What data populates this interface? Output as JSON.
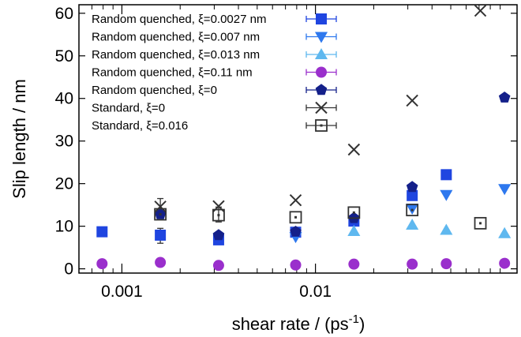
{
  "chart_data": {
    "type": "scatter",
    "xlabel": "shear rate / (ps",
    "xlabel_sup": "-1",
    "xlabel_end": ")",
    "ylabel": "Slip length / nm",
    "x_scale": "log",
    "xlim": [
      0.0006,
      0.11
    ],
    "ylim": [
      -1,
      62
    ],
    "x_ticks": [
      {
        "value": 0.001,
        "label": "0.001"
      },
      {
        "value": 0.01,
        "label": "0.01"
      }
    ],
    "y_ticks": [
      {
        "value": 0,
        "label": "0"
      },
      {
        "value": 10,
        "label": "10"
      },
      {
        "value": 20,
        "label": "20"
      },
      {
        "value": 30,
        "label": "30"
      },
      {
        "value": 40,
        "label": "40"
      },
      {
        "value": 50,
        "label": "50"
      },
      {
        "value": 60,
        "label": "60"
      }
    ],
    "grid": false,
    "legend_position": "top-left",
    "series": [
      {
        "name": "Random quenched, ξ=0.0027 nm",
        "marker": "square-filled",
        "color": "#1f45e0",
        "points": [
          [
            0.00079,
            8.7
          ],
          [
            0.00158,
            7.9
          ],
          [
            0.00316,
            6.8
          ],
          [
            0.0079,
            8.6
          ],
          [
            0.0158,
            11.2
          ],
          [
            0.0316,
            17.2
          ],
          [
            0.0474,
            22.1
          ]
        ]
      },
      {
        "name": "Random quenched, ξ=0.007 nm",
        "marker": "triangle-down-filled",
        "color": "#2e78ee",
        "points": [
          [
            0.0079,
            7.5
          ],
          [
            0.0316,
            14.2
          ],
          [
            0.0474,
            17.4
          ],
          [
            0.0948,
            18.8
          ]
        ]
      },
      {
        "name": "Random quenched, ξ=0.013 nm",
        "marker": "triangle-up-filled",
        "color": "#5fb8ef",
        "points": [
          [
            0.0158,
            8.8
          ],
          [
            0.0316,
            10.3
          ],
          [
            0.0474,
            9.1
          ],
          [
            0.0948,
            8.3
          ]
        ]
      },
      {
        "name": "Random quenched, ξ=0.11 nm",
        "marker": "circle-filled",
        "color": "#9a2fcc",
        "points": [
          [
            0.00079,
            1.2
          ],
          [
            0.00158,
            1.5
          ],
          [
            0.00316,
            0.8
          ],
          [
            0.0079,
            0.9
          ],
          [
            0.0158,
            1.1
          ],
          [
            0.0316,
            1.1
          ],
          [
            0.0474,
            1.2
          ],
          [
            0.0948,
            1.3
          ]
        ]
      },
      {
        "name": "Random quenched, ξ=0",
        "marker": "pentagon-filled",
        "color": "#14208a",
        "points": [
          [
            0.00158,
            12.8
          ],
          [
            0.00316,
            7.9
          ],
          [
            0.0079,
            8.7
          ],
          [
            0.0158,
            11.9
          ],
          [
            0.0316,
            19.2
          ],
          [
            0.0948,
            40.2
          ]
        ]
      },
      {
        "name": "Standard, ξ=0",
        "marker": "cross",
        "color": "#333333",
        "points": [
          [
            0.00158,
            14.6
          ],
          [
            0.00316,
            14.7
          ],
          [
            0.0079,
            16.1
          ],
          [
            0.0158,
            28.0
          ],
          [
            0.0316,
            39.5
          ],
          [
            0.0711,
            60.6
          ]
        ]
      },
      {
        "name": "Standard, ξ=0.016",
        "marker": "square-open",
        "color": "#333333",
        "points": [
          [
            0.00158,
            12.8
          ],
          [
            0.00316,
            12.6
          ],
          [
            0.0079,
            12.1
          ],
          [
            0.0158,
            13.2
          ],
          [
            0.0316,
            13.8
          ],
          [
            0.0711,
            10.7
          ]
        ]
      }
    ],
    "error_bars": [
      {
        "x": 0.00158,
        "y": 14.0,
        "low": 12.0,
        "high": 16.5
      },
      {
        "x": 0.00158,
        "y": 8.0,
        "low": 6.0,
        "high": 9.5
      },
      {
        "x": 0.00316,
        "y": 12.8,
        "low": 11.0,
        "high": 14.5
      }
    ]
  }
}
